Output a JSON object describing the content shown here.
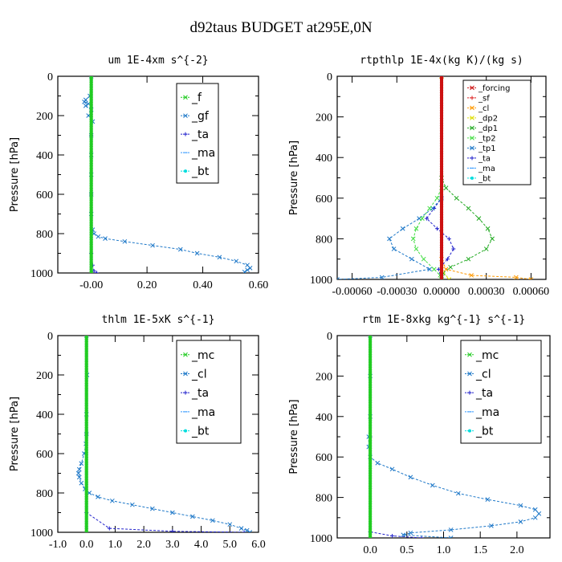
{
  "suptitle": "d92taus  BUDGET at295E,0N",
  "chart_data": [
    {
      "type": "line",
      "title": "um  1E-4xm s^{-2}",
      "ylabel": "Pressure [hPa]",
      "xlim": [
        -0.12,
        0.6
      ],
      "ylim": [
        1000,
        0
      ],
      "xticks": [
        -0.0,
        0.2,
        0.4,
        0.6
      ],
      "xtick_labels": [
        "-0.00",
        "0.20",
        "0.40",
        "0.60"
      ],
      "yticks": [
        0,
        200,
        400,
        600,
        800,
        1000
      ],
      "legend_style": "big",
      "series": [
        {
          "name": "_f",
          "color": "#22cc22",
          "marker": "x",
          "y": [
            0,
            50,
            100,
            150,
            200,
            300,
            400,
            500,
            600,
            700,
            800,
            900,
            950,
            1000
          ],
          "x": [
            0,
            0,
            0,
            0,
            0,
            0,
            0,
            0,
            0,
            0,
            0,
            0,
            0,
            0
          ]
        },
        {
          "name": "_gf",
          "color": "#1e78c8",
          "marker": "x",
          "y": [
            0,
            100,
            120,
            130,
            140,
            150,
            170,
            200,
            230,
            300,
            400,
            500,
            600,
            700,
            780,
            800,
            815,
            825,
            840,
            860,
            880,
            900,
            920,
            940,
            960,
            975,
            985,
            995
          ],
          "x": [
            0,
            -0.005,
            -0.02,
            -0.025,
            -0.01,
            -0.02,
            0.0,
            -0.01,
            0.005,
            0.0,
            0.0,
            0.0,
            0.0,
            0.0,
            0.005,
            0.01,
            0.025,
            0.05,
            0.12,
            0.22,
            0.32,
            0.38,
            0.46,
            0.52,
            0.56,
            0.57,
            0.56,
            0.55
          ]
        },
        {
          "name": "_ta",
          "color": "#2222cc",
          "marker": "+",
          "y": [
            0,
            300,
            600,
            900,
            960,
            990,
            1000
          ],
          "x": [
            0,
            0,
            0,
            0,
            0.005,
            0.01,
            0.02
          ]
        },
        {
          "name": "_ma",
          "color": "#3399ff",
          "marker": "-",
          "y": [
            0,
            500,
            1000
          ],
          "x": [
            0,
            0,
            0
          ]
        },
        {
          "name": "_bt",
          "color": "#00dddd",
          "marker": "dot",
          "y": [
            0,
            500,
            1000
          ],
          "x": [
            0,
            0,
            0
          ]
        }
      ]
    },
    {
      "type": "line",
      "title": "rtpthlp  1E-4x(kg K)/(kg s)",
      "ylabel": "Pressure [hPa]",
      "xlim": [
        -0.0007,
        0.0007
      ],
      "ylim": [
        1000,
        0
      ],
      "xticks": [
        -0.0006,
        -0.0003,
        0.0,
        0.0003,
        0.0006
      ],
      "xtick_labels": [
        "-0.00060",
        "-0.00030",
        "0.00000",
        "0.00030",
        "0.00060"
      ],
      "yticks": [
        0,
        200,
        400,
        600,
        800,
        1000
      ],
      "legend_style": "small",
      "series": [
        {
          "name": "_forcing",
          "color": "#cc1111",
          "marker": "x",
          "y": [
            0,
            200,
            400,
            600,
            800,
            1000
          ],
          "x": [
            0,
            0,
            0,
            0,
            0,
            0
          ]
        },
        {
          "name": "_sf",
          "color": "#dd2222",
          "marker": "+",
          "y": [
            0,
            500,
            1000
          ],
          "x": [
            0,
            0,
            0
          ]
        },
        {
          "name": "_cl",
          "color": "#ff9900",
          "marker": "x",
          "y": [
            0,
            900,
            950,
            980,
            990,
            1000
          ],
          "x": [
            0,
            0,
            3e-05,
            0.0002,
            0.0005,
            0.0006
          ]
        },
        {
          "name": "_dp2",
          "color": "#dddd00",
          "marker": "x",
          "y": [
            0,
            950,
            1000
          ],
          "x": [
            0,
            0,
            5e-05
          ]
        },
        {
          "name": "_dp1",
          "color": "#22aa22",
          "marker": "x",
          "y": [
            0,
            500,
            550,
            600,
            650,
            700,
            750,
            800,
            850,
            900,
            940,
            970,
            990,
            1000
          ],
          "x": [
            0,
            0,
            3e-05,
            0.0001,
            0.00018,
            0.00025,
            0.00031,
            0.00034,
            0.0003,
            0.00018,
            6e-05,
            1e-05,
            0.0,
            0.0
          ]
        },
        {
          "name": "_tp2",
          "color": "#44dd44",
          "marker": "x",
          "y": [
            0,
            550,
            600,
            650,
            700,
            750,
            800,
            850,
            900,
            950,
            980,
            1000
          ],
          "x": [
            0,
            0,
            -3e-05,
            -8e-05,
            -0.00013,
            -0.00017,
            -0.00019,
            -0.00017,
            -0.00012,
            -5e-05,
            -1e-05,
            0.0
          ]
        },
        {
          "name": "_tp1",
          "color": "#1e78c8",
          "marker": "x",
          "y": [
            0,
            600,
            650,
            700,
            750,
            800,
            850,
            900,
            950,
            990,
            1000
          ],
          "x": [
            0,
            0,
            -6e-05,
            -0.00015,
            -0.00026,
            -0.00035,
            -0.00032,
            -0.0002,
            -8e-05,
            -0.0004,
            -0.0007
          ]
        },
        {
          "name": "_ta",
          "color": "#2222cc",
          "marker": "+",
          "y": [
            0,
            600,
            650,
            700,
            750,
            800,
            850,
            900,
            950,
            1000
          ],
          "x": [
            0,
            0,
            -5e-05,
            -0.0001,
            -3e-05,
            5e-05,
            8e-05,
            4e-05,
            -2e-05,
            0.0
          ]
        },
        {
          "name": "_ma",
          "color": "#3399ff",
          "marker": "-",
          "y": [
            0,
            500,
            1000
          ],
          "x": [
            0,
            0,
            0
          ]
        },
        {
          "name": "_bt",
          "color": "#00dddd",
          "marker": "dot",
          "y": [
            0,
            500,
            1000
          ],
          "x": [
            0,
            0,
            0
          ]
        }
      ]
    },
    {
      "type": "line",
      "title": "thlm  1E-5xK s^{-1}",
      "ylabel": "Pressure [hPa]",
      "xlim": [
        -1.0,
        6.0
      ],
      "ylim": [
        1000,
        0
      ],
      "xticks": [
        -1.0,
        0.0,
        1.0,
        2.0,
        3.0,
        4.0,
        5.0,
        6.0
      ],
      "xtick_labels": [
        "-1.0",
        "0.0",
        "1.0",
        "2.0",
        "3.0",
        "4.0",
        "5.0",
        "6.0"
      ],
      "yticks": [
        0,
        200,
        400,
        600,
        800,
        1000
      ],
      "legend_style": "big",
      "series": [
        {
          "name": "_mc",
          "color": "#22cc22",
          "marker": "x",
          "y": [
            0,
            200,
            400,
            600,
            800,
            1000
          ],
          "x": [
            0,
            0,
            0,
            0,
            0,
            0
          ]
        },
        {
          "name": "_cl",
          "color": "#1e78c8",
          "marker": "x",
          "y": [
            0,
            200,
            400,
            500,
            550,
            600,
            650,
            680,
            700,
            720,
            750,
            780,
            800,
            820,
            840,
            860,
            880,
            900,
            920,
            940,
            960,
            980,
            990,
            1000
          ],
          "x": [
            0,
            0.02,
            0.0,
            0.0,
            -0.02,
            -0.08,
            -0.18,
            -0.25,
            -0.28,
            -0.25,
            -0.18,
            -0.05,
            0.1,
            0.4,
            0.9,
            1.6,
            2.3,
            3.0,
            3.7,
            4.4,
            5.0,
            5.4,
            5.6,
            5.7
          ]
        },
        {
          "name": "_ta",
          "color": "#2222cc",
          "marker": "+",
          "y": [
            0,
            500,
            900,
            980,
            995,
            1000
          ],
          "x": [
            0,
            0,
            0.0,
            0.8,
            3.0,
            5.5
          ]
        },
        {
          "name": "_ma",
          "color": "#3399ff",
          "marker": "-",
          "y": [
            0,
            500,
            1000
          ],
          "x": [
            0,
            0,
            0
          ]
        },
        {
          "name": "_bt",
          "color": "#00dddd",
          "marker": "dot",
          "y": [
            0,
            500,
            1000
          ],
          "x": [
            0,
            0,
            0
          ]
        }
      ]
    },
    {
      "type": "line",
      "title": "rtm  1E-8xkg kg^{-1} s^{-1}",
      "ylabel": "Pressure [hPa]",
      "xlim": [
        -0.45,
        2.45
      ],
      "ylim": [
        1000,
        0
      ],
      "xticks": [
        0.0,
        0.5,
        1.0,
        1.5,
        2.0
      ],
      "xtick_labels": [
        "0.0",
        "0.5",
        "1.0",
        "1.5",
        "2.0"
      ],
      "yticks": [
        0,
        200,
        400,
        600,
        800,
        1000
      ],
      "legend_style": "big",
      "series": [
        {
          "name": "_mc",
          "color": "#22cc22",
          "marker": "x",
          "y": [
            0,
            200,
            400,
            600,
            800,
            1000
          ],
          "x": [
            0,
            0,
            0,
            0,
            0,
            0
          ]
        },
        {
          "name": "_cl",
          "color": "#1e78c8",
          "marker": "x",
          "y": [
            0,
            200,
            400,
            500,
            550,
            600,
            630,
            660,
            700,
            740,
            780,
            810,
            840,
            860,
            880,
            900,
            920,
            940,
            960,
            975,
            985,
            1000
          ],
          "x": [
            0,
            0,
            0,
            -0.02,
            -0.02,
            0.0,
            0.1,
            0.3,
            0.55,
            0.85,
            1.2,
            1.6,
            2.05,
            2.25,
            2.3,
            2.25,
            2.05,
            1.65,
            1.1,
            0.55,
            0.45,
            1.1
          ]
        },
        {
          "name": "_ta",
          "color": "#2222cc",
          "marker": "+",
          "y": [
            0,
            500,
            970,
            990,
            1000
          ],
          "x": [
            0,
            0,
            0.0,
            0.3,
            0.7
          ]
        },
        {
          "name": "_ma",
          "color": "#3399ff",
          "marker": "-",
          "y": [
            0,
            500,
            1000
          ],
          "x": [
            0,
            0,
            0
          ]
        },
        {
          "name": "_bt",
          "color": "#00dddd",
          "marker": "dot",
          "y": [
            0,
            500,
            1000
          ],
          "x": [
            0,
            0,
            0
          ]
        }
      ]
    }
  ]
}
